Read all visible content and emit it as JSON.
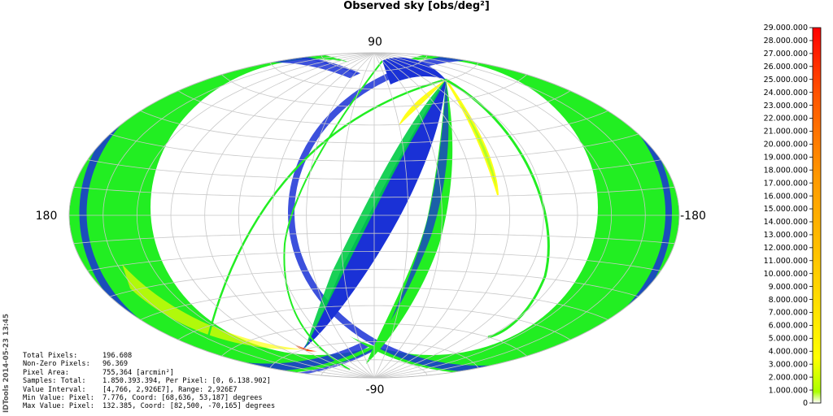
{
  "chart_data": {
    "type": "heatmap",
    "title": "Observed sky [obs/deg²]",
    "projection": "aitoff",
    "grid": true,
    "axis_labels": {
      "top": "90",
      "bottom": "-90",
      "left": "180",
      "right": "-180"
    },
    "colorbar": {
      "placement": "right",
      "min": 0,
      "max": 29000000,
      "ticks": [
        "29.000.000",
        "28.000.000",
        "27.000.000",
        "26.000.000",
        "25.000.000",
        "24.000.000",
        "23.000.000",
        "22.000.000",
        "21.000.000",
        "20.000.000",
        "19.000.000",
        "18.000.000",
        "17.000.000",
        "16.000.000",
        "15.000.000",
        "14.000.000",
        "13.000.000",
        "12.000.000",
        "11.000.000",
        "10.000.000",
        "9.000.000",
        "8.000.000",
        "7.000.000",
        "6.000.000",
        "5.000.000",
        "4.000.000",
        "3.000.000",
        "2.000.000",
        "1.000.000",
        "0"
      ],
      "colors": [
        "#ffffff",
        "#1a31d6",
        "#0a6ad8",
        "#00cc44",
        "#22ee22",
        "#aaff11",
        "#ffff00",
        "#ffcc00",
        "#ff8800",
        "#ff4400",
        "#ff0000"
      ]
    }
  },
  "stats": [
    {
      "label": "Total Pixels:",
      "value": "196.608"
    },
    {
      "label": "Non-Zero Pixels:",
      "value": "96.369"
    },
    {
      "label": "Pixel Area:",
      "value": "755,364 [arcmin²]"
    },
    {
      "label": "Samples: Total:",
      "value": "1.850.393.394, Per Pixel: [0, 6.138.902]"
    },
    {
      "label": "Value Interval:",
      "value": "[4,766, 2,926E7], Range: 2,926E7"
    },
    {
      "label": "Min Value: Pixel:",
      "value": "7.776, Coord: [68,636, 53,187] degrees"
    },
    {
      "label": "Max Value: Pixel:",
      "value": "132.385, Coord: [82,500, -70,165] degrees"
    }
  ],
  "side_label": "IDTools 2014-05-23 13:45"
}
